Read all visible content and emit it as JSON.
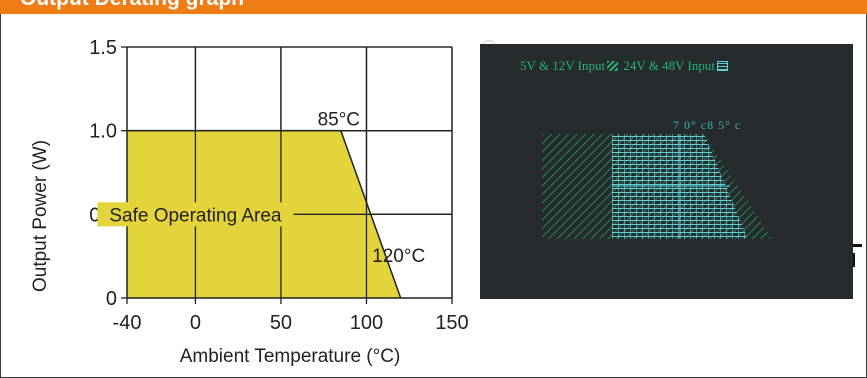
{
  "header": {
    "title": "Output Derating graph"
  },
  "chart_data": {
    "type": "area",
    "xlabel": "Ambient Temperature (°C)",
    "ylabel": "Output Power (W)",
    "xlim": [
      -40,
      150
    ],
    "ylim": [
      0,
      1.5
    ],
    "x_ticks": [
      -40,
      0,
      50,
      100,
      150
    ],
    "y_ticks": [
      0,
      0.5,
      1.0,
      1.5
    ],
    "x_tick_labels": [
      "-40",
      "0",
      "50",
      "100",
      "150"
    ],
    "y_tick_labels": [
      "0",
      "0.5",
      "1.0",
      "1.5"
    ],
    "grid": true,
    "fill_color": "#e3d43b",
    "series": [
      {
        "x": [
          -40,
          85,
          120
        ],
        "y": [
          1.0,
          1.0,
          0
        ]
      }
    ],
    "annotations": [
      {
        "text": "85°C",
        "x": 85,
        "y": 1.0
      },
      {
        "text": "120°C",
        "x": 120,
        "y": 0.25
      },
      {
        "text": "Safe Operating Area",
        "x": 0,
        "y": 0.5
      }
    ]
  },
  "overlay": {
    "legend_a": "5V & 12V Input",
    "legend_b": "24V & 48V Input",
    "temps": "7 0°  c8 5°   c",
    "hatch_color": "#23b27a",
    "grid_color": "#5fd0d8",
    "background": "#262b2d"
  }
}
